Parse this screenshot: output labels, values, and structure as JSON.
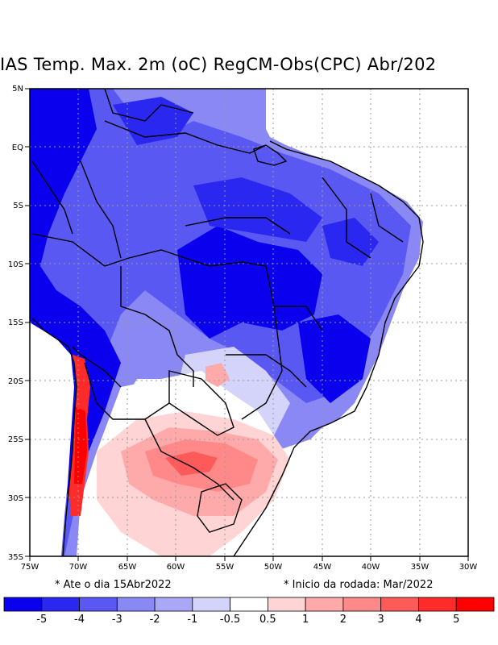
{
  "title": "IAS Temp. Max. 2m (oC) RegCM-Obs(CPC) Abr/202",
  "axes": {
    "lat_labels": [
      "5N",
      "EQ",
      "5S",
      "10S",
      "15S",
      "20S",
      "25S",
      "30S",
      "35S"
    ],
    "lon_labels": [
      "75W",
      "70W",
      "65W",
      "60W",
      "55W",
      "50W",
      "45W",
      "40W",
      "35W",
      "30W"
    ],
    "lat_range": [
      -35,
      5
    ],
    "lon_range": [
      -75,
      -30
    ]
  },
  "notes": {
    "left": "* Ate o dia 15Abr2022",
    "right": "* Inicio da rodada: Mar/2022"
  },
  "colorbar": {
    "colors": [
      "#0a00ee",
      "#2a28f0",
      "#5a58f2",
      "#8a88f4",
      "#aaa8f6",
      "#d4d4fa",
      "#ffffff",
      "#ffd4d4",
      "#ffaaaa",
      "#ff8888",
      "#ff5a5a",
      "#ff2a2a",
      "#ff0000"
    ],
    "labels": [
      "-5",
      "-4",
      "-3",
      "-2",
      "-1",
      "-0.5",
      "0.5",
      "1",
      "2",
      "3",
      "4",
      "5"
    ]
  },
  "colors": {
    "strong_cool": "#0a00ee",
    "cool": "#5a58f2",
    "light_cool": "#8a88f4",
    "very_light_cool": "#c8c8f8",
    "neutral": "#ffffff",
    "light_warm": "#ffc8c8",
    "warm": "#ff8888",
    "strong_warm": "#ff2a2a"
  }
}
